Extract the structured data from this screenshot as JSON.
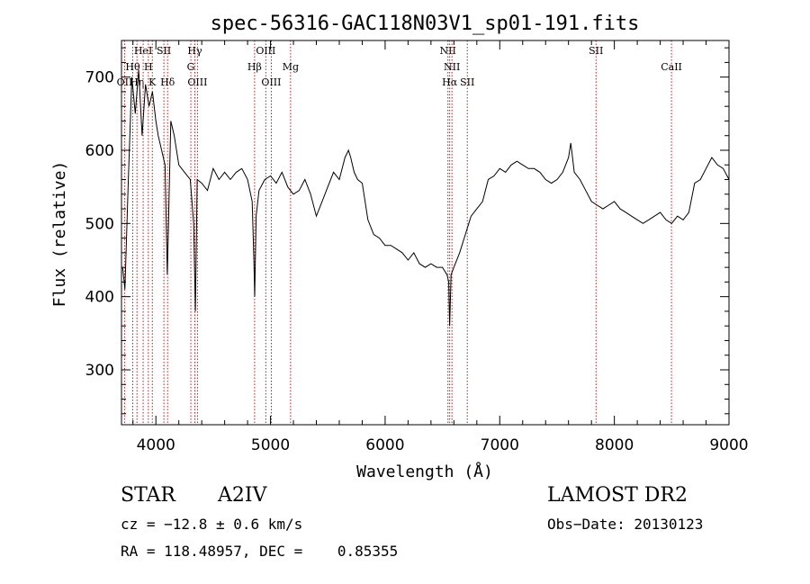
{
  "chart_data": {
    "type": "line",
    "title": "spec-56316-GAC118N03V1_sp01-191.fits",
    "xlabel": "Wavelength (Å)",
    "ylabel": "Flux (relative)",
    "xlim": [
      3700,
      9000
    ],
    "ylim": [
      225,
      750
    ],
    "x_ticks": [
      4000,
      5000,
      6000,
      7000,
      8000,
      9000
    ],
    "y_ticks": [
      300,
      400,
      500,
      600,
      700
    ],
    "grid": false,
    "line_color": "#000000",
    "marker_color": "#b22222",
    "lines": [
      {
        "label": "OII",
        "wavelength": 3727,
        "row": 3
      },
      {
        "label": "Hθ",
        "wavelength": 3798,
        "row": 2
      },
      {
        "label": "Hη",
        "wavelength": 3835,
        "row": 3
      },
      {
        "label": "HeI",
        "wavelength": 3889,
        "row": 1
      },
      {
        "label": "H",
        "wavelength": 3934,
        "row": 2
      },
      {
        "label": "K",
        "wavelength": 3969,
        "row": 3
      },
      {
        "label": "SII",
        "wavelength": 4070,
        "row": 1
      },
      {
        "label": "Hδ",
        "wavelength": 4102,
        "row": 3
      },
      {
        "label": "Hγ",
        "wavelength": 4340,
        "row": 1
      },
      {
        "label": "G",
        "wavelength": 4305,
        "row": 2
      },
      {
        "label": "OIII",
        "wavelength": 4363,
        "row": 3
      },
      {
        "label": "Hβ",
        "wavelength": 4861,
        "row": 2
      },
      {
        "label": "OIII",
        "wavelength": 4959,
        "row": 1
      },
      {
        "label": "OIII",
        "wavelength": 5007,
        "row": 3
      },
      {
        "label": "Mg",
        "wavelength": 5175,
        "row": 2
      },
      {
        "label": "NII",
        "wavelength": 6548,
        "row": 1
      },
      {
        "label": "NII",
        "wavelength": 6583,
        "row": 2
      },
      {
        "label": "Hα",
        "wavelength": 6563,
        "row": 3
      },
      {
        "label": "SII",
        "wavelength": 6717,
        "row": 3
      },
      {
        "label": "SII",
        "wavelength": 7840,
        "row": 1
      },
      {
        "label": "CaII",
        "wavelength": 8498,
        "row": 2
      }
    ],
    "spectrum": {
      "x": [
        3710,
        3730,
        3760,
        3790,
        3820,
        3850,
        3880,
        3910,
        3940,
        3970,
        4000,
        4020,
        4050,
        4080,
        4100,
        4130,
        4160,
        4200,
        4250,
        4300,
        4330,
        4345,
        4360,
        4400,
        4450,
        4500,
        4550,
        4600,
        4650,
        4700,
        4750,
        4800,
        4840,
        4855,
        4862,
        4875,
        4900,
        4950,
        5000,
        5050,
        5100,
        5150,
        5200,
        5250,
        5300,
        5350,
        5400,
        5450,
        5500,
        5550,
        5600,
        5650,
        5680,
        5700,
        5730,
        5760,
        5800,
        5850,
        5900,
        5950,
        6000,
        6050,
        6100,
        6150,
        6200,
        6250,
        6300,
        6350,
        6400,
        6450,
        6500,
        6540,
        6555,
        6563,
        6575,
        6600,
        6650,
        6700,
        6750,
        6800,
        6850,
        6900,
        6950,
        7000,
        7050,
        7100,
        7150,
        7200,
        7250,
        7300,
        7350,
        7400,
        7450,
        7500,
        7550,
        7600,
        7620,
        7650,
        7700,
        7750,
        7800,
        7850,
        7900,
        7950,
        8000,
        8050,
        8100,
        8150,
        8200,
        8250,
        8300,
        8350,
        8400,
        8450,
        8500,
        8550,
        8600,
        8650,
        8700,
        8750,
        8800,
        8850,
        8900,
        8950,
        9000
      ],
      "y": [
        440,
        410,
        560,
        700,
        650,
        710,
        620,
        690,
        660,
        680,
        640,
        620,
        600,
        580,
        430,
        640,
        620,
        580,
        570,
        560,
        500,
        380,
        560,
        555,
        545,
        575,
        560,
        570,
        560,
        570,
        575,
        560,
        530,
        450,
        400,
        510,
        545,
        560,
        565,
        555,
        570,
        550,
        540,
        545,
        560,
        540,
        510,
        530,
        550,
        570,
        560,
        590,
        600,
        590,
        570,
        560,
        555,
        505,
        485,
        480,
        470,
        470,
        465,
        460,
        450,
        460,
        445,
        440,
        445,
        440,
        440,
        430,
        420,
        360,
        430,
        440,
        460,
        485,
        510,
        520,
        530,
        560,
        565,
        575,
        570,
        580,
        585,
        580,
        575,
        575,
        570,
        560,
        555,
        560,
        570,
        590,
        610,
        570,
        560,
        545,
        530,
        525,
        520,
        525,
        530,
        520,
        515,
        510,
        505,
        500,
        505,
        510,
        515,
        505,
        500,
        510,
        505,
        515,
        555,
        560,
        575,
        590,
        580,
        575,
        560
      ]
    }
  },
  "info": {
    "obj_type": "STAR",
    "subclass": "A2IV",
    "survey": "LAMOST DR2",
    "cz": "cz = −12.8 ± 0.6 km/s",
    "obs_date": "Obs−Date: 20130123",
    "radec": "RA = 118.48957, DEC =    0.85355"
  }
}
